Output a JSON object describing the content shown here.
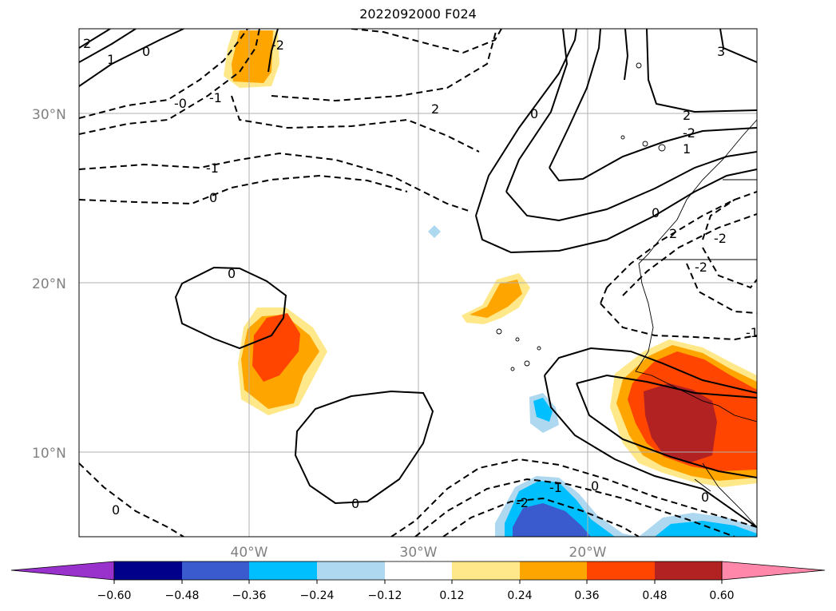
{
  "title": "2022092000 F024",
  "map": {
    "lat_labels": [
      "30°N",
      "20°N",
      "10°N"
    ],
    "lon_labels": [
      "40°W",
      "30°W",
      "20°W"
    ],
    "contour_labels": [
      "2",
      "1",
      "0",
      "-0",
      "-1",
      "-2",
      "2",
      "0",
      "-1",
      "0",
      "-2",
      "0",
      "0",
      "0",
      "0",
      "-1",
      "-2",
      "0",
      "2",
      "3",
      "2",
      "1",
      "-2",
      "-1",
      "0",
      "-2"
    ]
  },
  "colorbar": {
    "ticks": [
      "−0.60",
      "−0.48",
      "−0.36",
      "−0.24",
      "−0.12",
      "0.12",
      "0.24",
      "0.36",
      "0.48",
      "0.60"
    ],
    "colors": [
      "#9932cc",
      "#00008b",
      "#3a5bcd",
      "#00bfff",
      "#add8f0",
      "#ffffff",
      "#ffe88a",
      "#ffa500",
      "#ff4500",
      "#b22222",
      "#ff88aa"
    ]
  }
}
